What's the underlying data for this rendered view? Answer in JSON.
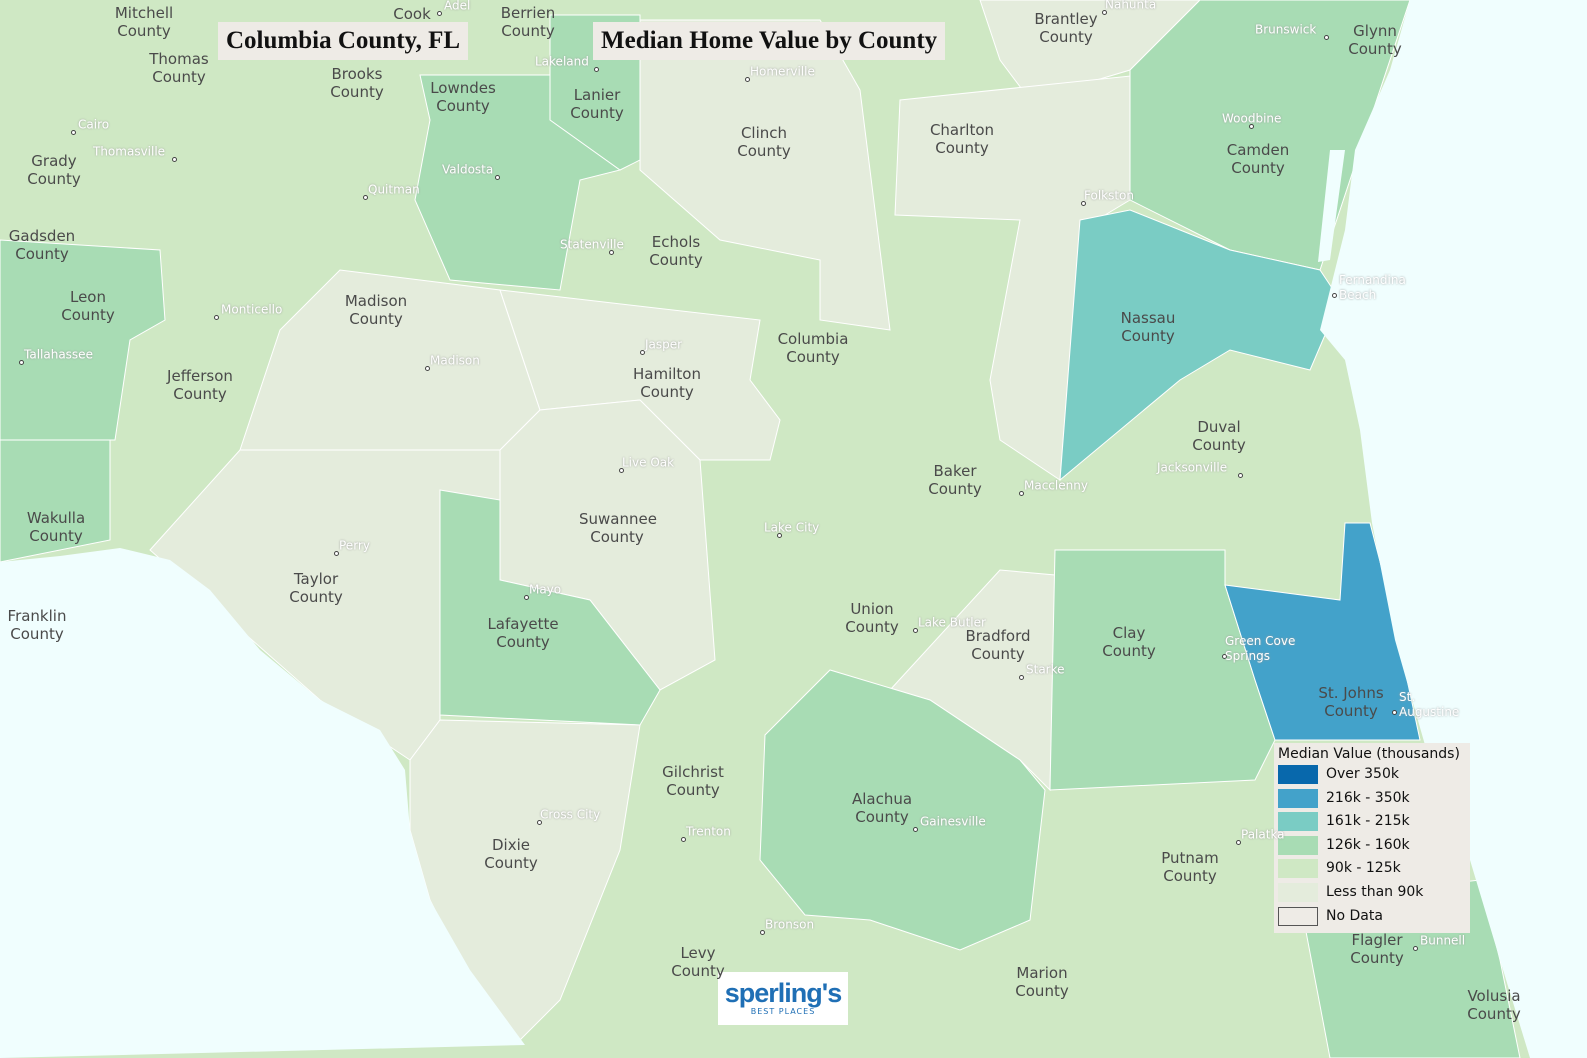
{
  "header": {
    "place": "Columbia County, FL",
    "title": "Median Home Value by County"
  },
  "legend": {
    "title": "Median Value (thousands)",
    "items": [
      {
        "label": "Over 350k",
        "color": "#0868ac"
      },
      {
        "label": "216k - 350k",
        "color": "#43a2ca"
      },
      {
        "label": "161k - 215k",
        "color": "#7accc4"
      },
      {
        "label": "126k - 160k",
        "color": "#a8dcb4"
      },
      {
        "label": "90k - 125k",
        "color": "#cfe8c4"
      },
      {
        "label": "Less than 90k",
        "color": "#e4ecdc"
      },
      {
        "label": "No Data",
        "color": "#eeebe6"
      }
    ]
  },
  "counties": [
    {
      "name": "Mitchell County",
      "color": "#cfe8c4"
    },
    {
      "name": "Cook",
      "color": "#cfe8c4"
    },
    {
      "name": "Berrien County",
      "color": "#cfe8c4"
    },
    {
      "name": "Brantley County",
      "color": "#e4ecdc"
    },
    {
      "name": "Glynn County",
      "color": "#a8dcb4"
    },
    {
      "name": "Thomas County",
      "color": "#cfe8c4"
    },
    {
      "name": "Brooks County",
      "color": "#cfe8c4"
    },
    {
      "name": "Lowndes County",
      "color": "#a8dcb4"
    },
    {
      "name": "Lanier County",
      "color": "#a8dcb4"
    },
    {
      "name": "Grady County",
      "color": "#cfe8c4"
    },
    {
      "name": "Clinch County",
      "color": "#e4ecdc"
    },
    {
      "name": "Charlton County",
      "color": "#e4ecdc"
    },
    {
      "name": "Camden County",
      "color": "#a8dcb4"
    },
    {
      "name": "Echols County",
      "color": "#cfe8c4"
    },
    {
      "name": "Gadsden County",
      "color": "#cfe8c4"
    },
    {
      "name": "Leon County",
      "color": "#a8dcb4"
    },
    {
      "name": "Madison County",
      "color": "#e4ecdc"
    },
    {
      "name": "Jefferson County",
      "color": "#cfe8c4"
    },
    {
      "name": "Columbia County",
      "color": "#cfe8c4"
    },
    {
      "name": "Hamilton County",
      "color": "#e4ecdc"
    },
    {
      "name": "Nassau County",
      "color": "#7accc4"
    },
    {
      "name": "Duval County",
      "color": "#cfe8c4"
    },
    {
      "name": "Baker County",
      "color": "#cfe8c4"
    },
    {
      "name": "Suwannee County",
      "color": "#e4ecdc"
    },
    {
      "name": "Wakulla County",
      "color": "#a8dcb4"
    },
    {
      "name": "Taylor County",
      "color": "#e4ecdc"
    },
    {
      "name": "Franklin County"
    },
    {
      "name": "Lafayette County",
      "color": "#a8dcb4"
    },
    {
      "name": "Union County",
      "color": "#cfe8c4"
    },
    {
      "name": "Bradford County",
      "color": "#e4ecdc"
    },
    {
      "name": "Clay County",
      "color": "#a8dcb4"
    },
    {
      "name": "St. Johns County",
      "color": "#43a2ca"
    },
    {
      "name": "Gilchrist County",
      "color": "#cfe8c4"
    },
    {
      "name": "Alachua County",
      "color": "#a8dcb4"
    },
    {
      "name": "Dixie County",
      "color": "#e4ecdc"
    },
    {
      "name": "Putnam County",
      "color": "#cfe8c4"
    },
    {
      "name": "Levy County",
      "color": "#cfe8c4"
    },
    {
      "name": "Marion County",
      "color": "#cfe8c4"
    },
    {
      "name": "Flagler County",
      "color": "#a8dcb4"
    },
    {
      "name": "Volusia County",
      "color": "#cfe8c4"
    }
  ],
  "cities": [
    "Adel",
    "Lakeland",
    "Homerville",
    "Nahunta",
    "Brunswick",
    "Cairo",
    "Thomasville",
    "Quitman",
    "Valdosta",
    "Woodbine",
    "Folkston",
    "Statenville",
    "Fernandina Beach",
    "Monticello",
    "Tallahassee",
    "Jasper",
    "Madison",
    "Jacksonville",
    "Live Oak",
    "Macclenny",
    "Perry",
    "Lake City",
    "Mayo",
    "Green Cove Springs",
    "Lake Butler",
    "Starke",
    "St. Augustine",
    "Cross City",
    "Trenton",
    "Gainesville",
    "Palatka",
    "Bronson",
    "Bunnell"
  ],
  "logo": {
    "brand": "sperling's",
    "tagline": "BEST PLACES"
  }
}
